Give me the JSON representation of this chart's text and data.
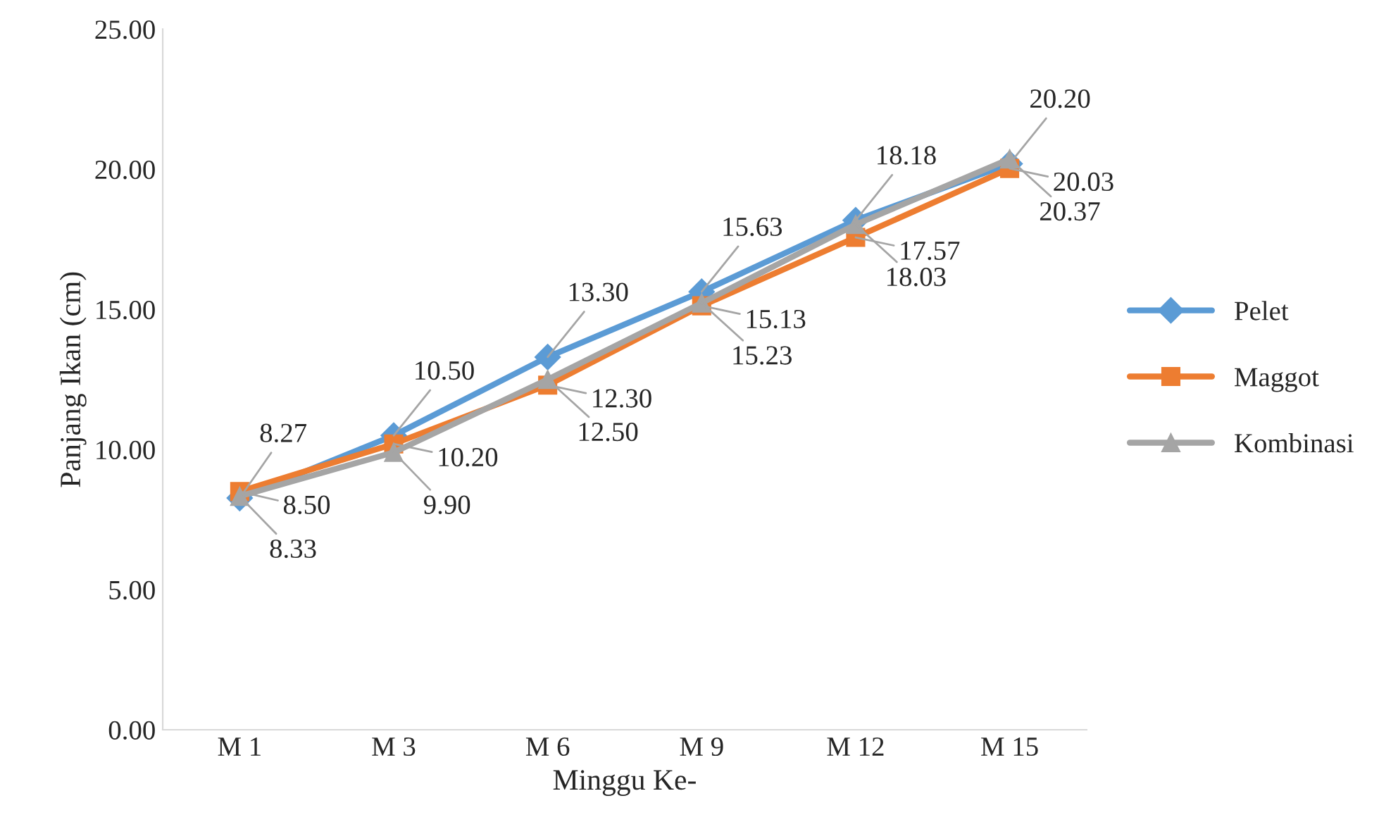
{
  "chart_data": {
    "type": "line",
    "xlabel": "Minggu Ke-",
    "ylabel": "Panjang Ikan (cm)",
    "categories": [
      "M 1",
      "M 3",
      "M 6",
      "M 9",
      "M 12",
      "M 15"
    ],
    "series": [
      {
        "name": "Pelet",
        "color": "#5b9bd5",
        "marker": "diamond",
        "values": [
          8.27,
          10.5,
          13.3,
          15.63,
          18.18,
          20.2
        ],
        "value_labels": [
          "8.27",
          "10.50",
          "13.30",
          "15.63",
          "18.18",
          "20.20"
        ]
      },
      {
        "name": "Maggot",
        "color": "#ed7d31",
        "marker": "square",
        "values": [
          8.5,
          10.2,
          12.3,
          15.13,
          17.57,
          20.03
        ],
        "value_labels": [
          "8.50",
          "10.20",
          "12.30",
          "15.13",
          "17.57",
          "20.03"
        ]
      },
      {
        "name": "Kombinasi",
        "color": "#a5a5a5",
        "marker": "triangle",
        "values": [
          8.33,
          9.9,
          12.5,
          15.23,
          18.03,
          20.37
        ],
        "value_labels": [
          "8.33",
          "9.90",
          "12.50",
          "15.23",
          "18.03",
          "20.37"
        ]
      }
    ],
    "ylim": [
      0,
      25
    ],
    "yticks": [
      {
        "value": 0,
        "label": "0.00"
      },
      {
        "value": 5,
        "label": "5.00"
      },
      {
        "value": 10,
        "label": "10.00"
      },
      {
        "value": 15,
        "label": "15.00"
      },
      {
        "value": 20,
        "label": "20.00"
      },
      {
        "value": 25,
        "label": "25.00"
      }
    ],
    "grid": false,
    "legend": "right",
    "line_style": "solid"
  }
}
